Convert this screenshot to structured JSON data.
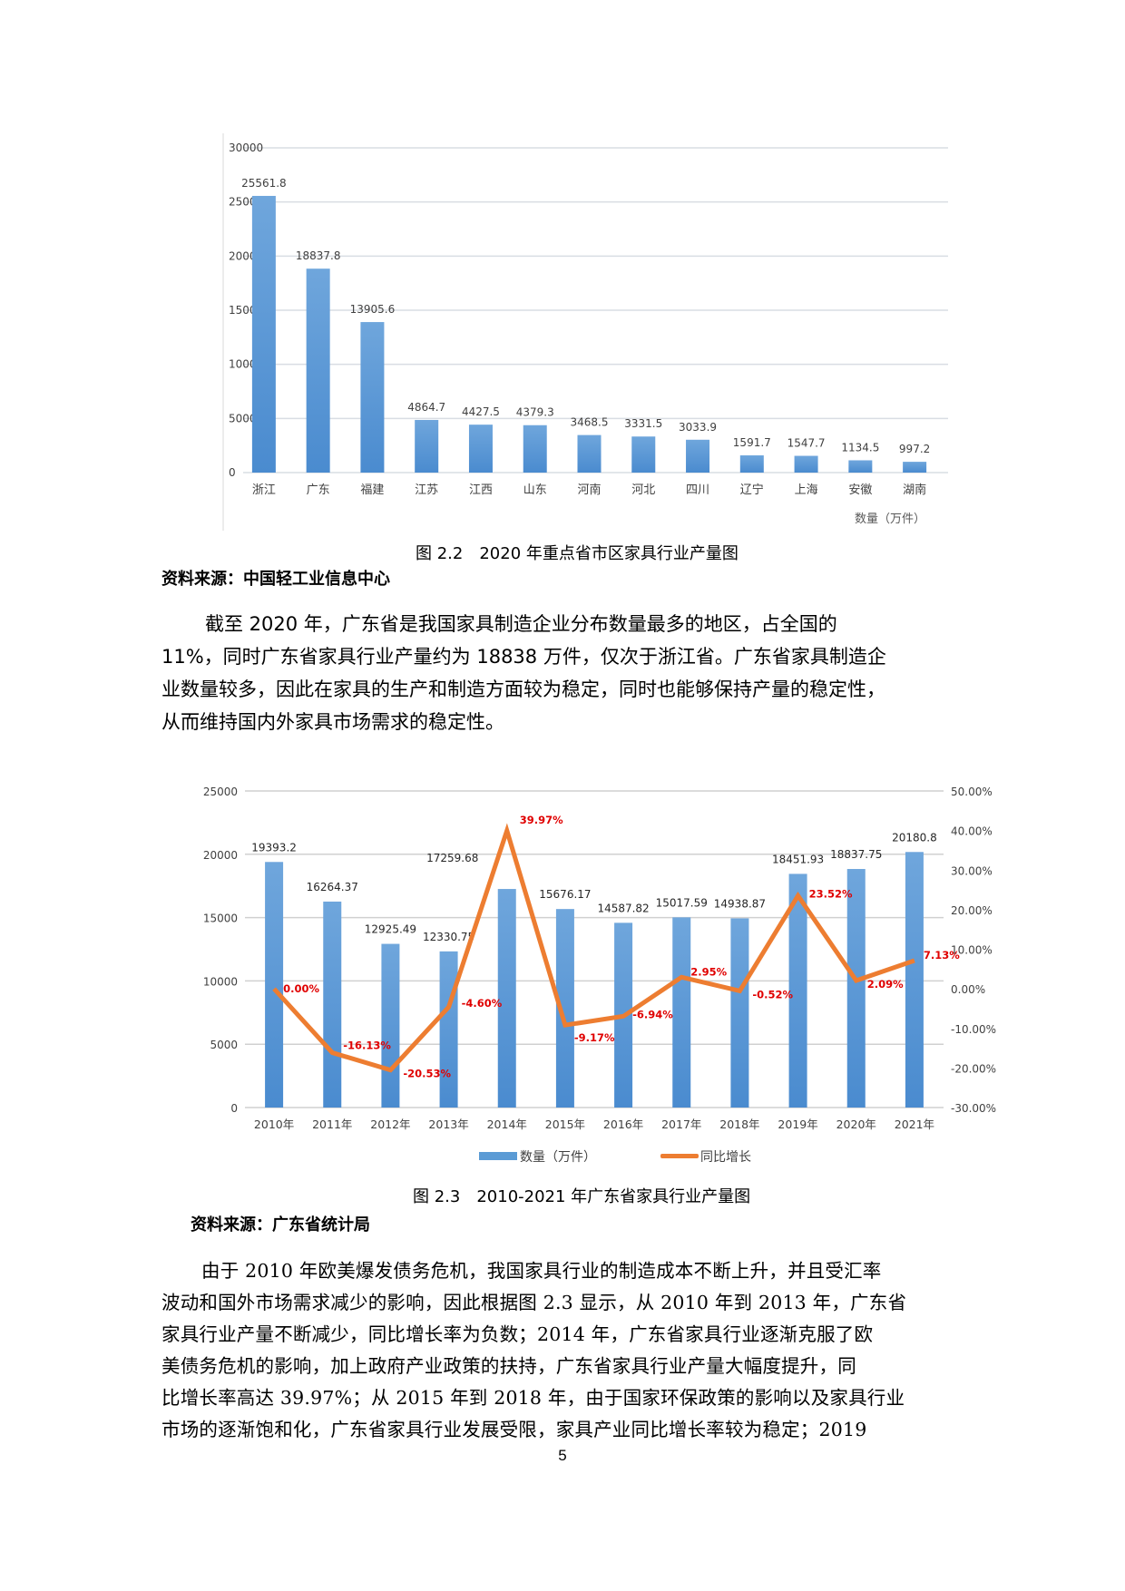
{
  "chart_data": [
    {
      "type": "bar",
      "title": "图 2.2　2020 年重点省市区家具行业产量图",
      "xlabel": "",
      "ylabel": "",
      "unit_label": "数量（万件）",
      "categories": [
        "浙江",
        "广东",
        "福建",
        "江苏",
        "江西",
        "山东",
        "河南",
        "河北",
        "四川",
        "辽宁",
        "上海",
        "安徽",
        "湖南"
      ],
      "values": [
        25561.8,
        18837.8,
        13905.6,
        4864.7,
        4427.5,
        4379.3,
        3468.5,
        3331.5,
        3033.9,
        1591.7,
        1547.7,
        1134.5,
        997.2
      ],
      "value_labels": [
        "25561.8",
        "18837.8",
        "13905.6",
        "4864.7",
        "4427.5",
        "4379.3",
        "3468.5",
        "3331.5",
        "3033.9",
        "1591.7",
        "1547.7",
        "1134.5",
        "997.2"
      ],
      "ylim": [
        0,
        30000
      ],
      "yticks": [
        "0",
        "5000",
        "10000",
        "15000",
        "20000",
        "25000",
        "30000"
      ],
      "grid": true,
      "bar_color": "#5B9BD5"
    },
    {
      "type": "bar+line",
      "title": "图 2.3　2010-2021 年广东省家具行业产量图",
      "categories": [
        "2010年",
        "2011年",
        "2012年",
        "2013年",
        "2014年",
        "2015年",
        "2016年",
        "2017年",
        "2018年",
        "2019年",
        "2020年",
        "2021年"
      ],
      "series": [
        {
          "name": "数量（万件）",
          "type": "bar",
          "axis": "left",
          "color": "#5B9BD5",
          "values": [
            19393.2,
            16264.37,
            12925.49,
            12330.75,
            17259.68,
            15676.17,
            14587.82,
            15017.59,
            14938.87,
            18451.93,
            18837.75,
            20180.8
          ],
          "labels": [
            "19393.2",
            "16264.37",
            "12925.49",
            "12330.75",
            "17259.68",
            "15676.17",
            "14587.82",
            "15017.59",
            "14938.87",
            "18451.93",
            "18837.75",
            "20180.8"
          ]
        },
        {
          "name": "同比增长",
          "type": "line",
          "axis": "right",
          "color": "#ED7D31",
          "label_color": "#E00000",
          "values": [
            0.0,
            -16.13,
            -20.53,
            -4.6,
            39.97,
            -9.17,
            -6.94,
            2.95,
            -0.52,
            23.52,
            2.09,
            7.13
          ],
          "labels": [
            "0.00%",
            "-16.13%",
            "-20.53%",
            "-4.60%",
            "39.97%",
            "-9.17%",
            "-6.94%",
            "2.95%",
            "-0.52%",
            "23.52%",
            "2.09%",
            "7.13%"
          ]
        }
      ],
      "ylim_left": [
        0,
        25000
      ],
      "yticks_left": [
        "0",
        "5000",
        "10000",
        "15000",
        "20000",
        "25000"
      ],
      "ylim_right": [
        -30,
        50
      ],
      "yticks_right": [
        "-30.00%",
        "-20.00%",
        "-10.00%",
        "0.00%",
        "10.00%",
        "20.00%",
        "30.00%",
        "40.00%",
        "50.00%"
      ],
      "legend_position": "bottom",
      "grid": true
    }
  ],
  "figure1": {
    "caption": "图 2.2　2020 年重点省市区家具行业产量图",
    "source": "资料来源：中国轻工业信息中心"
  },
  "paragraph1": {
    "lines": [
      "截至 2020 年，广东省是我国家具制造企业分布数量最多的地区，占全国的",
      "11%，同时广东省家具行业产量约为 18838 万件，仅次于浙江省。广东省家具制造企",
      "业数量较多，因此在家具的生产和制造方面较为稳定，同时也能够保持产量的稳定性，",
      "从而维持国内外家具市场需求的稳定性。"
    ]
  },
  "figure2": {
    "caption": "图 2.3　2010-2021 年广东省家具行业产量图",
    "source": "资料来源：广东省统计局",
    "legend": [
      "数量（万件）",
      "同比增长"
    ]
  },
  "paragraph2": {
    "lines": [
      "由于 2010 年欧美爆发债务危机，我国家具行业的制造成本不断上升，并且受汇率",
      "波动和国外市场需求减少的影响，因此根据图 2.3 显示，从 2010 年到 2013 年，广东省",
      "家具行业产量不断减少，同比增长率为负数；2014 年，广东省家具行业逐渐克服了欧",
      "美债务危机的影响，加上政府产业政策的扶持，广东省家具行业产量大幅度提升，同",
      "比增长率高达 39.97%；从 2015 年到 2018 年，由于国家环保政策的影响以及家具行业",
      "市场的逐渐饱和化，广东省家具行业发展受限，家具产业同比增长率较为稳定；2019"
    ]
  },
  "page_number": "5"
}
